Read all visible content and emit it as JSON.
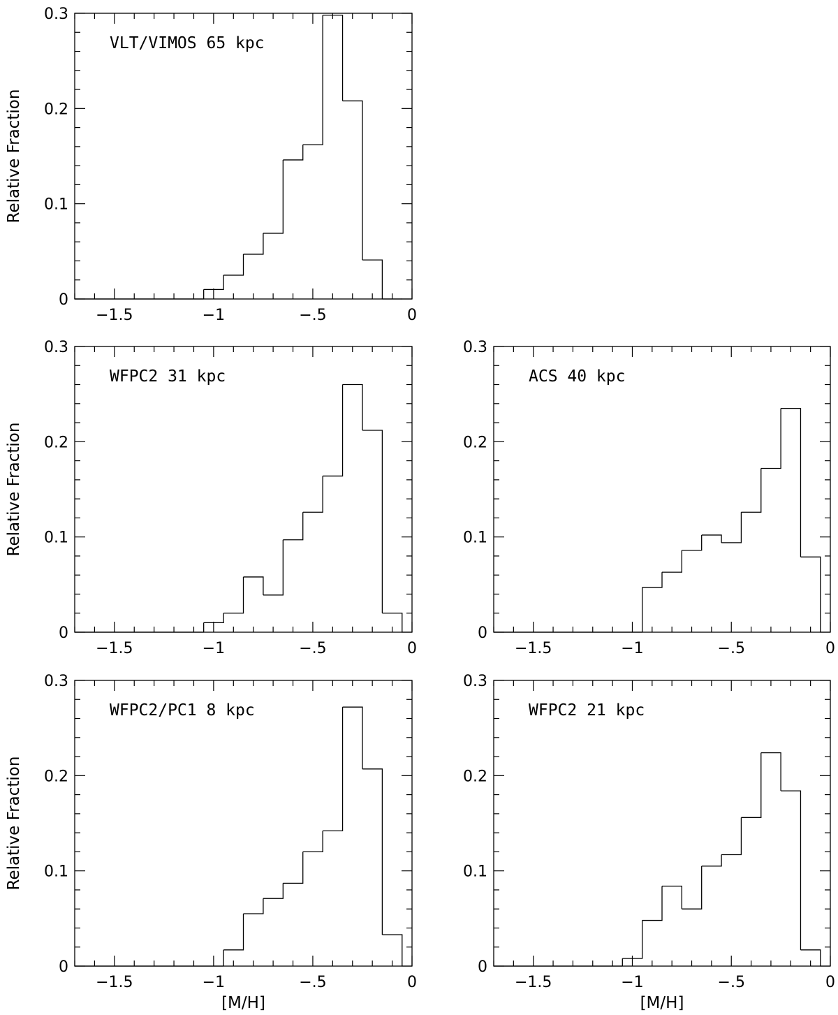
{
  "chart_data": [
    {
      "id": "vlt-vimos-65",
      "type": "histogram",
      "panel_label": "VLT/VIMOS 65 kpc",
      "xlabel": "",
      "ylabel": "Relative Fraction",
      "xlim": [
        -1.7,
        0
      ],
      "ylim": [
        0,
        0.3
      ],
      "xticks": [
        -1.5,
        -1,
        -0.5,
        0
      ],
      "xtick_labels": [
        "−1.5",
        "−1",
        "−.5",
        "0"
      ],
      "yticks": [
        0,
        0.1,
        0.2,
        0.3
      ],
      "ytick_labels": [
        "0",
        "0.1",
        "0.2",
        "0.3"
      ],
      "bin_edges": [
        -1.05,
        -0.95,
        -0.85,
        -0.75,
        -0.65,
        -0.55,
        -0.45,
        -0.35,
        -0.25,
        -0.15,
        -0.05
      ],
      "values": [
        0.01,
        0.025,
        0.047,
        0.069,
        0.146,
        0.162,
        0.298,
        0.208,
        0.041,
        0
      ]
    },
    {
      "id": "wfpc2-31",
      "type": "histogram",
      "panel_label": "WFPC2 31 kpc",
      "xlabel": "",
      "ylabel": "Relative Fraction",
      "xlim": [
        -1.7,
        0
      ],
      "ylim": [
        0,
        0.3
      ],
      "xticks": [
        -1.5,
        -1,
        -0.5,
        0
      ],
      "xtick_labels": [
        "−1.5",
        "−1",
        "−.5",
        "0"
      ],
      "yticks": [
        0,
        0.1,
        0.2,
        0.3
      ],
      "ytick_labels": [
        "0",
        "0.1",
        "0.2",
        "0.3"
      ],
      "bin_edges": [
        -1.05,
        -0.95,
        -0.85,
        -0.75,
        -0.65,
        -0.55,
        -0.45,
        -0.35,
        -0.25,
        -0.15,
        -0.05
      ],
      "values": [
        0.01,
        0.02,
        0.058,
        0.039,
        0.097,
        0.126,
        0.164,
        0.26,
        0.212,
        0.02
      ]
    },
    {
      "id": "acs-40",
      "type": "histogram",
      "panel_label": "ACS 40 kpc",
      "xlabel": "",
      "ylabel": "",
      "xlim": [
        -1.7,
        0
      ],
      "ylim": [
        0,
        0.3
      ],
      "xticks": [
        -1.5,
        -1,
        -0.5,
        0
      ],
      "xtick_labels": [
        "−1.5",
        "−1",
        "−.5",
        "0"
      ],
      "yticks": [
        0,
        0.1,
        0.2,
        0.3
      ],
      "ytick_labels": [
        "0",
        "0.1",
        "0.2",
        "0.3"
      ],
      "bin_edges": [
        -0.95,
        -0.85,
        -0.75,
        -0.65,
        -0.55,
        -0.45,
        -0.35,
        -0.25,
        -0.15,
        -0.05
      ],
      "values": [
        0.047,
        0.063,
        0.086,
        0.102,
        0.094,
        0.126,
        0.172,
        0.235,
        0.079
      ]
    },
    {
      "id": "wfpc2-pc1-8",
      "type": "histogram",
      "panel_label": "WFPC2/PC1 8 kpc",
      "xlabel": "[M/H]",
      "ylabel": "Relative Fraction",
      "xlim": [
        -1.7,
        0
      ],
      "ylim": [
        0,
        0.3
      ],
      "xticks": [
        -1.5,
        -1,
        -0.5,
        0
      ],
      "xtick_labels": [
        "−1.5",
        "−1",
        "−.5",
        "0"
      ],
      "yticks": [
        0,
        0.1,
        0.2,
        0.3
      ],
      "ytick_labels": [
        "0",
        "0.1",
        "0.2",
        "0.3"
      ],
      "bin_edges": [
        -0.95,
        -0.85,
        -0.75,
        -0.65,
        -0.55,
        -0.45,
        -0.35,
        -0.25,
        -0.15,
        -0.05
      ],
      "values": [
        0.017,
        0.055,
        0.071,
        0.087,
        0.12,
        0.142,
        0.272,
        0.207,
        0.033
      ]
    },
    {
      "id": "wfpc2-21",
      "type": "histogram",
      "panel_label": "WFPC2 21 kpc",
      "xlabel": "[M/H]",
      "ylabel": "",
      "xlim": [
        -1.7,
        0
      ],
      "ylim": [
        0,
        0.3
      ],
      "xticks": [
        -1.5,
        -1,
        -0.5,
        0
      ],
      "xtick_labels": [
        "−1.5",
        "−1",
        "−.5",
        "0"
      ],
      "yticks": [
        0,
        0.1,
        0.2,
        0.3
      ],
      "ytick_labels": [
        "0",
        "0.1",
        "0.2",
        "0.3"
      ],
      "bin_edges": [
        -1.05,
        -0.95,
        -0.85,
        -0.75,
        -0.65,
        -0.55,
        -0.45,
        -0.35,
        -0.25,
        -0.15,
        -0.05
      ],
      "values": [
        0.008,
        0.048,
        0.084,
        0.06,
        0.105,
        0.117,
        0.156,
        0.224,
        0.184,
        0.017
      ]
    }
  ]
}
